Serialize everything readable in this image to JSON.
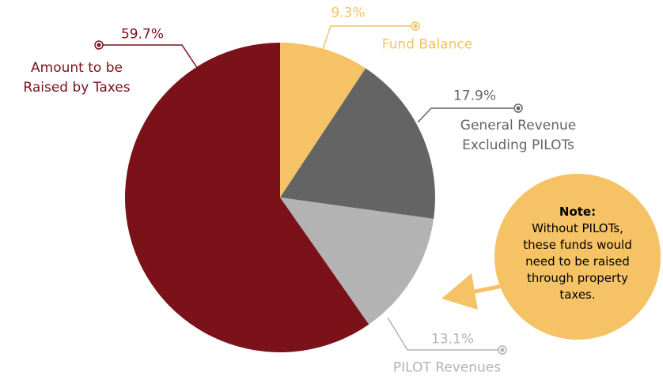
{
  "chart_data": {
    "type": "pie",
    "categories": [
      "Fund Balance",
      "General Revenue\nExcluding PILOTs",
      "PILOT Revenues",
      "Amount to be\nRaised by Taxes"
    ],
    "values": [
      9.3,
      17.9,
      13.1,
      59.7
    ],
    "value_labels": [
      "9.3%",
      "17.9%",
      "13.1%",
      "59.7%"
    ],
    "colors": [
      "#f5c265",
      "#646464",
      "#b3b3b3",
      "#7b1119"
    ],
    "annotation": {
      "title": "Note:",
      "text": "Without PILOTs, these funds would need to be raised through property taxes."
    }
  }
}
